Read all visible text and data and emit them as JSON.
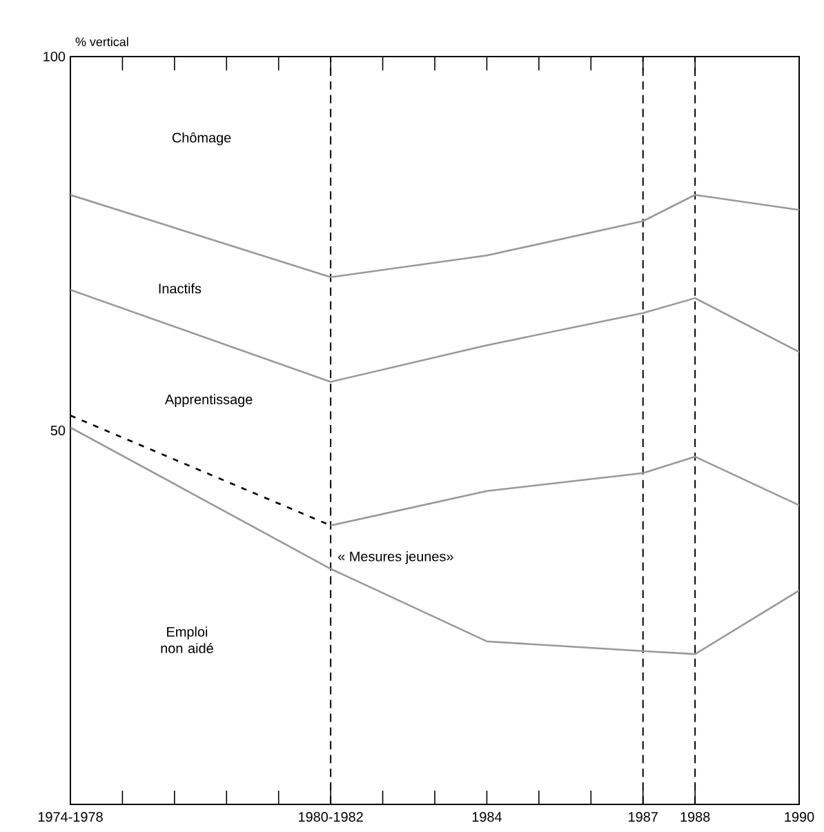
{
  "chart_data": {
    "type": "line",
    "ylabel": "% vertical",
    "xlim": [
      1976,
      1990
    ],
    "ylim": [
      0,
      100
    ],
    "xticks": [
      {
        "value": 1976,
        "label": "1974-1978"
      },
      {
        "value": 1977,
        "label": null
      },
      {
        "value": 1978,
        "label": null
      },
      {
        "value": 1979,
        "label": null
      },
      {
        "value": 1980,
        "label": null
      },
      {
        "value": 1981,
        "label": "1980-1982"
      },
      {
        "value": 1982,
        "label": null
      },
      {
        "value": 1983,
        "label": null
      },
      1984,
      {
        "value": 1985,
        "label": null
      },
      {
        "value": 1986,
        "label": null
      },
      1987,
      1988,
      1990
    ],
    "yticks": [
      50,
      100
    ],
    "x": [
      1976,
      1981,
      1984,
      1987,
      1988,
      1990
    ],
    "series": [
      {
        "color": "#999999",
        "values": [
          81.5,
          70.5,
          73.4,
          78,
          81.5,
          79.5
        ]
      },
      {
        "color": "#999999",
        "values": [
          68.8,
          56.5,
          61.4,
          65.7,
          67.7,
          60.5
        ]
      },
      {
        "color": "#999999",
        "values": [
          null,
          37.3,
          41.9,
          44.3,
          46.5,
          40
        ]
      },
      {
        "color": "#000000",
        "x": [
          1976,
          1981
        ],
        "values": [
          52,
          37.3
        ],
        "line_style": "dashed"
      },
      {
        "color": "#999999",
        "values": [
          50.4,
          31.5,
          21.8,
          20.5,
          20.1,
          28.6
        ]
      }
    ],
    "ref_lines": [
      {
        "axis": "x",
        "value": 1981,
        "color": "#000000",
        "line_style": "dashed"
      },
      {
        "axis": "x",
        "value": 1987,
        "color": "#000000",
        "line_style": "dashed"
      },
      {
        "axis": "x",
        "value": 1988,
        "color": "#000000",
        "line_style": "dashed"
      }
    ],
    "annotations": [
      "Chômage",
      "Inactifs",
      "Apprentissage",
      "« Mesures jeunes»",
      "Emploi non aidé"
    ],
    "grid": false
  }
}
